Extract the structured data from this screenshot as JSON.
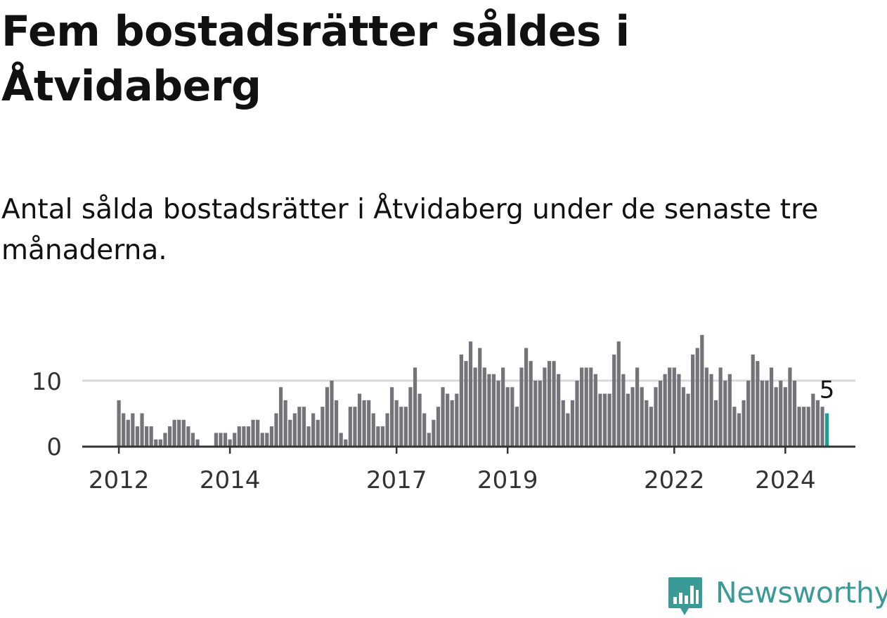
{
  "title": "Fem bostadsrätter såldes i Åtvidaberg",
  "subtitle": "Antal sålda bostadsrätter i Åtvidaberg under de senaste tre månaderna.",
  "brand": {
    "name": "Newsworthy",
    "color": "#3a9a96",
    "icon": "newsworthy-logo-icon"
  },
  "colors": {
    "bar": "#74737a",
    "highlight": "#1a9e96",
    "gridline": "#d9d9d9",
    "axis": "#333333"
  },
  "chart_data": {
    "type": "bar",
    "x_start": "2012-01",
    "x_interval": "month",
    "x_ticks": [
      "2012",
      "2014",
      "2017",
      "2019",
      "2022",
      "2024"
    ],
    "y_ticks": [
      0,
      10
    ],
    "ylim": [
      0,
      17
    ],
    "grid": true,
    "highlight_last": true,
    "last_label": "5",
    "values": [
      7,
      5,
      4,
      5,
      3,
      5,
      3,
      3,
      1,
      1,
      2,
      3,
      4,
      4,
      4,
      3,
      2,
      1,
      0,
      0,
      0,
      2,
      2,
      2,
      1,
      2,
      3,
      3,
      3,
      4,
      4,
      2,
      2,
      3,
      5,
      9,
      7,
      4,
      5,
      6,
      6,
      3,
      5,
      4,
      6,
      9,
      10,
      7,
      2,
      1,
      6,
      6,
      8,
      7,
      7,
      5,
      3,
      3,
      5,
      9,
      7,
      6,
      6,
      9,
      12,
      8,
      5,
      2,
      4,
      6,
      9,
      8,
      7,
      8,
      14,
      13,
      16,
      12,
      15,
      12,
      11,
      11,
      10,
      12,
      9,
      9,
      6,
      12,
      15,
      13,
      10,
      10,
      12,
      13,
      13,
      11,
      7,
      5,
      7,
      10,
      12,
      12,
      12,
      11,
      8,
      8,
      8,
      14,
      16,
      11,
      8,
      9,
      12,
      9,
      7,
      6,
      9,
      10,
      11,
      12,
      12,
      11,
      9,
      8,
      14,
      15,
      17,
      12,
      11,
      7,
      12,
      10,
      11,
      6,
      5,
      7,
      10,
      14,
      13,
      10,
      10,
      12,
      9,
      10,
      9,
      12,
      10,
      6,
      6,
      6,
      8,
      7,
      6,
      5
    ]
  }
}
